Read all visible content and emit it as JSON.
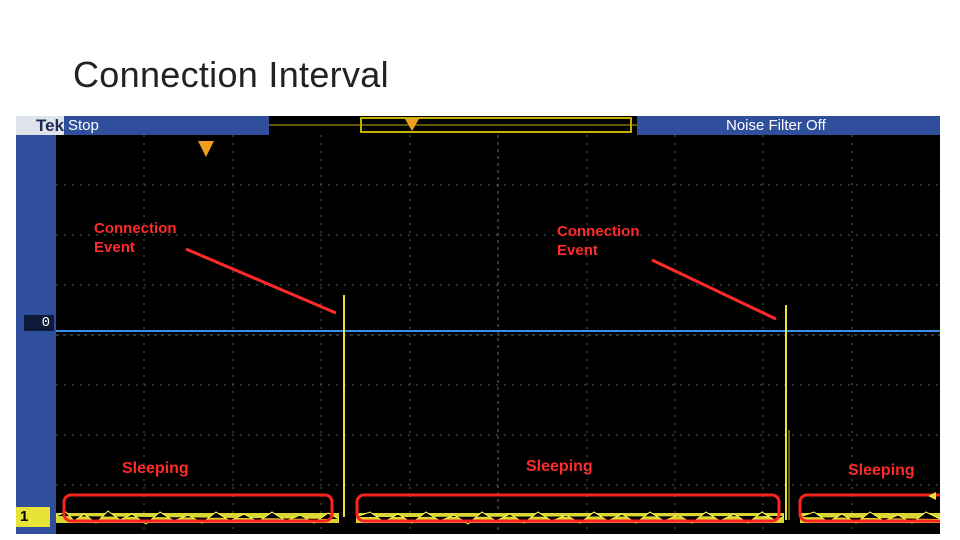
{
  "slide": {
    "title": "Connection Interval"
  },
  "scope": {
    "brand": "Tek",
    "run_state": "Stop",
    "noise_filter": "Noise Filter Off",
    "reference_level_label": "0",
    "channel_label": "1",
    "colors": {
      "trace": "#f2ee3a",
      "annotation": "#ff2a2a",
      "ui_blue": "#2f4f9c",
      "reference_line": "#3b8fe6",
      "grid": "#6a6a6a"
    }
  },
  "annotations": {
    "event_1": [
      "Connection",
      "Event"
    ],
    "event_2": [
      "Connection",
      "Event"
    ],
    "sleep_1": "Sleeping",
    "sleep_2": "Sleeping",
    "sleep_3": "Sleeping"
  }
}
